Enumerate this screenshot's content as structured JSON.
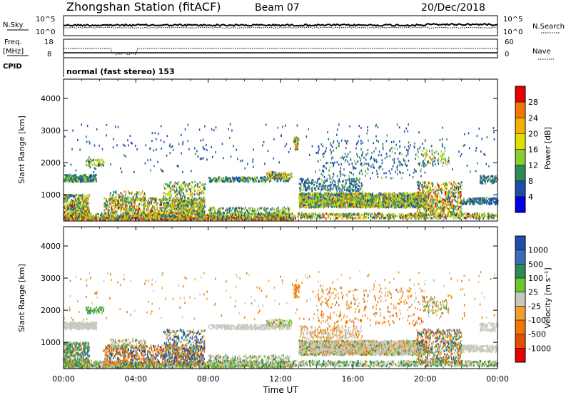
{
  "header": {
    "station_title": "Zhongshan Station (fitACF)",
    "beam": "Beam 07",
    "date": "20/Dec/2018"
  },
  "noise_panel": {
    "left_label": "N.Sky",
    "right_label": "N.Search",
    "left_ticks": [
      "10^5",
      "10^0"
    ],
    "right_ticks": [
      "10^5",
      "10^0"
    ]
  },
  "freq_panel": {
    "left_label_top": "Freq.",
    "left_label_bottom": "[MHz]",
    "left_ticks": [
      "18",
      "8"
    ],
    "right_label": "Nave",
    "right_ticks": [
      "60",
      "0"
    ]
  },
  "cpid_panel": {
    "label": "CPID",
    "mode_text": "normal (fast stereo) 153"
  },
  "power_panel": {
    "ylabel": "Slant Range [km]",
    "colorbar_label": "Power [dB]",
    "colorbar_ticks": [
      "28",
      "24",
      "20",
      "16",
      "12",
      "8",
      "4"
    ],
    "colorbar_colors": [
      "#e60000",
      "#f07800",
      "#f3b000",
      "#e0e000",
      "#88d030",
      "#2e8b57",
      "#1f4ea8",
      "#0000e0"
    ]
  },
  "velocity_panel": {
    "ylabel": "Slant Range [km]",
    "colorbar_label": "Velocity [m s⁻¹]",
    "colorbar_ticks": [
      "1000",
      "500",
      "100",
      "25",
      "-25",
      "-100",
      "-500",
      "-1000"
    ],
    "colorbar_colors": [
      "#1f4ea8",
      "#3a6db8",
      "#2e8b57",
      "#6ac82e",
      "#c8c8c0",
      "#f0a030",
      "#f07800",
      "#e05000",
      "#e60000"
    ]
  },
  "x_axis": {
    "label": "Time UT",
    "ticks": [
      "00:00",
      "04:00",
      "08:00",
      "12:00",
      "16:00",
      "20:00",
      "00:00"
    ]
  },
  "chart_data": {
    "type": "heatmap",
    "title": "Zhongshan Station (fitACF)",
    "xlabel": "Time UT",
    "ylabel": "Slant Range [km]",
    "x_range_hours": [
      0,
      24
    ],
    "ylim": [
      180,
      4600
    ],
    "y_ticks": [
      1000,
      2000,
      3000,
      4000
    ],
    "power_colorbar": [
      4,
      8,
      12,
      16,
      20,
      24,
      28
    ],
    "velocity_colorbar": [
      -1000,
      -500,
      -100,
      -25,
      25,
      100,
      500,
      1000
    ],
    "legend": "right"
  }
}
